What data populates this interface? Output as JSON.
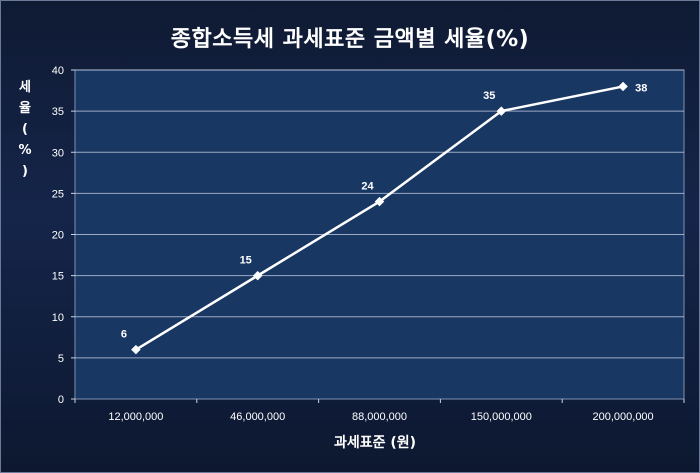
{
  "chart_data": {
    "type": "line",
    "title": "종합소득세 과세표준 금액별 세율(%)",
    "xlabel": "과세표준 (원)",
    "ylabel": "세율(%)",
    "categories": [
      "12,000,000",
      "46,000,000",
      "88,000,000",
      "150,000,000",
      "200,000,000"
    ],
    "series": [
      {
        "values": [
          6,
          15,
          24,
          35,
          38
        ]
      }
    ],
    "ylim": [
      0,
      40
    ],
    "yticks": [
      0,
      5,
      10,
      15,
      20,
      25,
      30,
      35,
      40
    ],
    "grid": true,
    "legend": "none",
    "data_labels": [
      "6",
      "15",
      "24",
      "35",
      "38"
    ],
    "colors": {
      "background": "#15254a",
      "plot_area": "#183763",
      "line": "#ffffff",
      "text": "#ffffff"
    }
  }
}
